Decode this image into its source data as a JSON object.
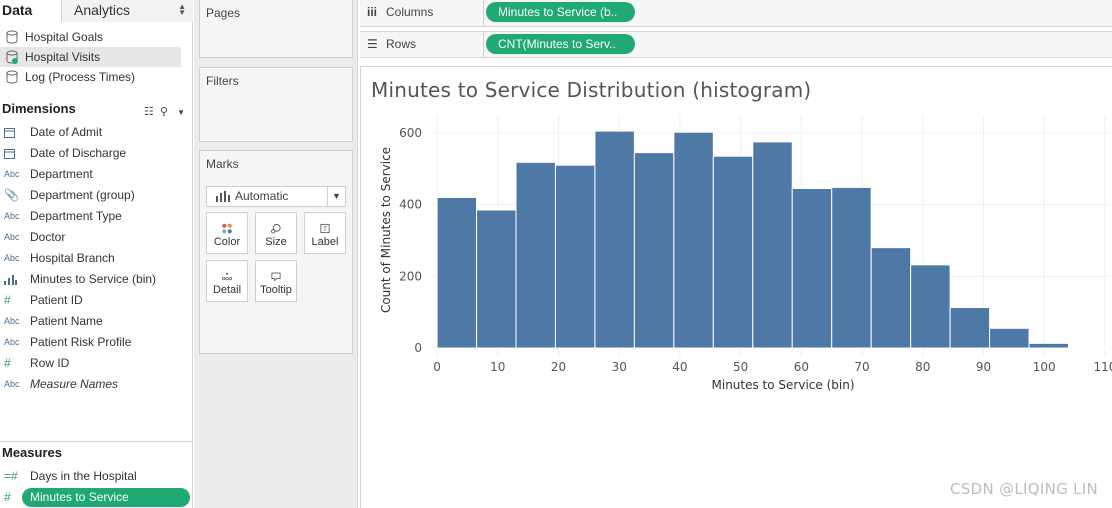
{
  "tabs": {
    "data": "Data",
    "analytics": "Analytics"
  },
  "datasources": [
    {
      "label": "Hospital Goals",
      "icon": "database-icon",
      "selected": false
    },
    {
      "label": "Hospital Visits",
      "icon": "database-check-icon",
      "selected": true
    },
    {
      "label": "Log (Process Times)",
      "icon": "database-icon",
      "selected": false
    }
  ],
  "dimensions": {
    "header": "Dimensions",
    "fields": [
      {
        "icon": "calendar-icon",
        "label": "Date of Admit"
      },
      {
        "icon": "calendar-icon",
        "label": "Date of Discharge"
      },
      {
        "icon": "Abc",
        "label": "Department"
      },
      {
        "icon": "paperclip-icon",
        "label": "Department (group)"
      },
      {
        "icon": "Abc",
        "label": "Department Type"
      },
      {
        "icon": "Abc",
        "label": "Doctor"
      },
      {
        "icon": "Abc",
        "label": "Hospital Branch"
      },
      {
        "icon": "bin-histogram-icon",
        "label": "Minutes to Service (bin)"
      },
      {
        "icon": "#",
        "label": "Patient ID"
      },
      {
        "icon": "Abc",
        "label": "Patient Name"
      },
      {
        "icon": "Abc",
        "label": "Patient Risk Profile"
      },
      {
        "icon": "#",
        "label": "Row ID"
      },
      {
        "icon": "Abc",
        "label": "Measure Names"
      }
    ]
  },
  "measures": {
    "header": "Measures",
    "fields": [
      {
        "icon": "=#",
        "label": "Days in the Hospital"
      },
      {
        "icon": "#",
        "label": "Minutes to Service"
      }
    ]
  },
  "cards": {
    "pages": "Pages",
    "filters": "Filters",
    "marks": "Marks",
    "mark_type": "Automatic",
    "buttons": {
      "color": "Color",
      "size": "Size",
      "label": "Label",
      "detail": "Detail",
      "tooltip": "Tooltip"
    }
  },
  "shelves": {
    "columns_label": "Columns",
    "columns_pill": "Minutes to Service (b..",
    "rows_label": "Rows",
    "rows_pill": "CNT(Minutes to Serv.."
  },
  "watermark": "CSDN @LIQING LIN",
  "colors": {
    "accent_pill": "#1faa74",
    "bar": "#4e79a7"
  },
  "chart_data": {
    "type": "bar",
    "title": "Minutes to Service Distribution (histogram)",
    "xlabel": "Minutes to Service (bin)",
    "ylabel": "Count of Minutes to Service",
    "bin_size": 6.5,
    "bins_start": [
      0,
      6.5,
      13,
      19.5,
      26,
      32.5,
      39,
      45.5,
      52,
      58.5,
      65,
      71.5,
      78,
      84.5,
      91,
      97.5,
      104
    ],
    "values": [
      420,
      385,
      518,
      510,
      605,
      545,
      602,
      535,
      575,
      445,
      448,
      280,
      232,
      113,
      55,
      13,
      2
    ],
    "x_ticks": [
      0,
      10,
      20,
      30,
      40,
      50,
      60,
      70,
      80,
      90,
      100,
      110
    ],
    "y_ticks": [
      0,
      200,
      400,
      600
    ],
    "xlim": [
      -1,
      111
    ],
    "ylim": [
      -25,
      650
    ],
    "grid": true,
    "legend": "none"
  }
}
